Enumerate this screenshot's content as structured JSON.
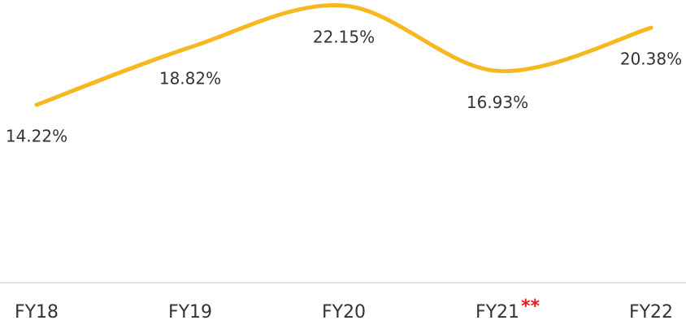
{
  "chart_data": {
    "type": "line",
    "categories": [
      "FY18",
      "FY19",
      "FY20",
      "FY21",
      "FY22"
    ],
    "series": [
      {
        "color": "#f6b81e",
        "values": [
          14.22,
          18.82,
          22.15,
          16.93,
          20.38
        ],
        "value_labels": [
          "14.22%",
          "18.82%",
          "22.15%",
          "16.93%",
          "20.38%"
        ]
      }
    ],
    "ylim": [
      0,
      22.6
    ],
    "annotations": [
      {
        "text": "**",
        "x": "FY21",
        "color": "#e31b23"
      }
    ]
  }
}
